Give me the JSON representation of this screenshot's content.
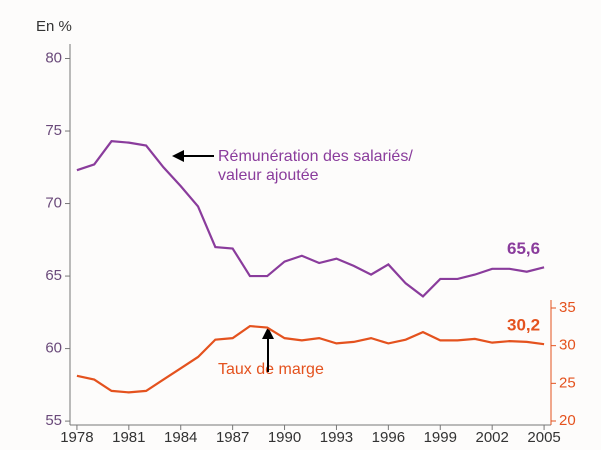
{
  "chart_data": {
    "type": "line",
    "y_unit_label": "En %",
    "x": [
      1978,
      1979,
      1980,
      1981,
      1982,
      1983,
      1984,
      1985,
      1986,
      1987,
      1988,
      1989,
      1990,
      1991,
      1992,
      1993,
      1994,
      1995,
      1996,
      1997,
      1998,
      1999,
      2000,
      2001,
      2002,
      2003,
      2004,
      2005
    ],
    "series": [
      {
        "color": "#8a3c9c",
        "values": [
          72.3,
          72.7,
          74.3,
          74.2,
          74.0,
          72.5,
          71.2,
          69.8,
          67.0,
          66.9,
          65.0,
          65.0,
          66.0,
          66.4,
          65.9,
          66.2,
          65.7,
          65.1,
          65.8,
          64.5,
          63.6,
          64.8,
          64.8,
          65.1,
          65.5,
          65.5,
          65.3,
          65.6
        ],
        "value_labels": [
          null,
          null,
          null,
          null,
          null,
          null,
          null,
          null,
          null,
          null,
          null,
          null,
          null,
          null,
          null,
          null,
          null,
          null,
          null,
          null,
          null,
          null,
          null,
          null,
          null,
          null,
          null,
          "65,6"
        ]
      },
      {
        "color": "#e4521e",
        "axis": "y2",
        "values": [
          26.0,
          25.5,
          24.0,
          23.8,
          24.0,
          25.5,
          27.0,
          28.5,
          30.8,
          31.0,
          32.6,
          32.4,
          31.0,
          30.7,
          31.0,
          30.3,
          30.5,
          31.0,
          30.3,
          30.8,
          31.8,
          30.7,
          30.7,
          30.9,
          30.4,
          30.6,
          30.5,
          30.2
        ],
        "value_labels": [
          null,
          null,
          null,
          null,
          null,
          null,
          null,
          null,
          null,
          null,
          null,
          null,
          null,
          null,
          null,
          null,
          null,
          null,
          null,
          null,
          null,
          null,
          null,
          null,
          null,
          null,
          null,
          "30,2"
        ]
      }
    ],
    "annotations": [
      {
        "lines": [
          "Rémunération des salariés/",
          "valeur ajoutée"
        ]
      },
      {
        "lines": [
          "Taux de marge"
        ]
      }
    ],
    "xlim": [
      1977.6,
      2005.4
    ],
    "xticks": [
      1978,
      1981,
      1984,
      1987,
      1990,
      1993,
      1996,
      1999,
      2002,
      2005
    ],
    "ylim": [
      54.8,
      81
    ],
    "yticks": [
      55,
      60,
      65,
      70,
      75,
      80
    ],
    "y2lim": [
      20,
      35
    ],
    "y2ticks": [
      20,
      25,
      30,
      35
    ]
  }
}
